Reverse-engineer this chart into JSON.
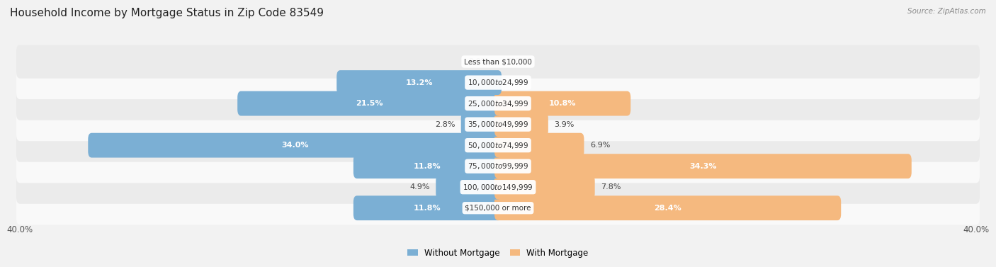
{
  "title": "Household Income by Mortgage Status in Zip Code 83549",
  "source": "Source: ZipAtlas.com",
  "categories": [
    "Less than $10,000",
    "$10,000 to $24,999",
    "$25,000 to $34,999",
    "$35,000 to $49,999",
    "$50,000 to $74,999",
    "$75,000 to $99,999",
    "$100,000 to $149,999",
    "$150,000 or more"
  ],
  "without_mortgage": [
    0.0,
    13.2,
    21.5,
    2.8,
    34.0,
    11.8,
    4.9,
    11.8
  ],
  "with_mortgage": [
    0.0,
    0.0,
    10.8,
    3.9,
    6.9,
    34.3,
    7.8,
    28.4
  ],
  "without_color": "#7bafd4",
  "with_color": "#f5b97f",
  "axis_limit": 40.0,
  "bg_color": "#f2f2f2",
  "row_bg_light": "#f9f9f9",
  "row_bg_dark": "#ebebeb",
  "title_fontsize": 11,
  "label_fontsize": 8,
  "cat_label_fontsize": 7.5,
  "axis_label_fontsize": 8.5,
  "bar_height": 0.58,
  "inside_label_threshold": 10.0
}
